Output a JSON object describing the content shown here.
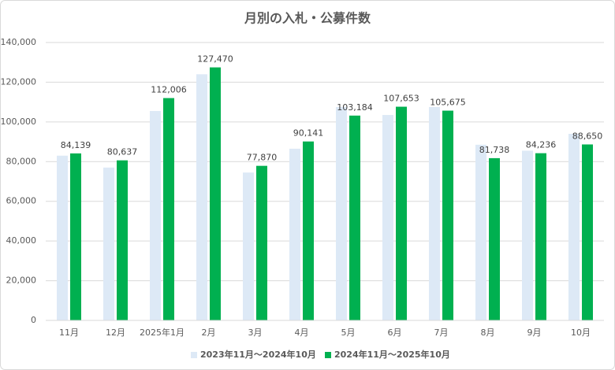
{
  "chart_data": {
    "type": "bar",
    "title": "月別の入札・公募件数",
    "categories": [
      "11月",
      "12月",
      "2025年1月",
      "2月",
      "3月",
      "4月",
      "5月",
      "6月",
      "7月",
      "8月",
      "9月",
      "10月"
    ],
    "series": [
      {
        "name": "2023年11月～2024年10月",
        "color": "#dde9f6",
        "values": [
          83000,
          77000,
          105500,
          124000,
          74500,
          86500,
          107500,
          103500,
          107500,
          88500,
          85500,
          94000
        ]
      },
      {
        "name": "2024年11月～2025年10月",
        "color": "#00b050",
        "values": [
          84139,
          80637,
          112006,
          127470,
          77870,
          90141,
          103184,
          107653,
          105675,
          81738,
          84236,
          88650
        ],
        "value_labels": [
          "84,139",
          "80,637",
          "112,006",
          "127,470",
          "77,870",
          "90,141",
          "103,184",
          "107,653",
          "105,675",
          "81,738",
          "84,236",
          "88,650"
        ]
      }
    ],
    "ylim": [
      0,
      140000
    ],
    "yticks": [
      0,
      {
        "value": 20000,
        "label": "20,000"
      },
      {
        "value": 40000,
        "label": "40,000"
      },
      {
        "value": 60000,
        "label": "60,000"
      },
      {
        "value": 80000,
        "label": "80,000"
      },
      {
        "value": 100000,
        "label": "100,000"
      },
      {
        "value": 120000,
        "label": "120,000"
      },
      {
        "value": 140000,
        "label": "140,000"
      }
    ],
    "grid": true,
    "legend": "bottom"
  }
}
